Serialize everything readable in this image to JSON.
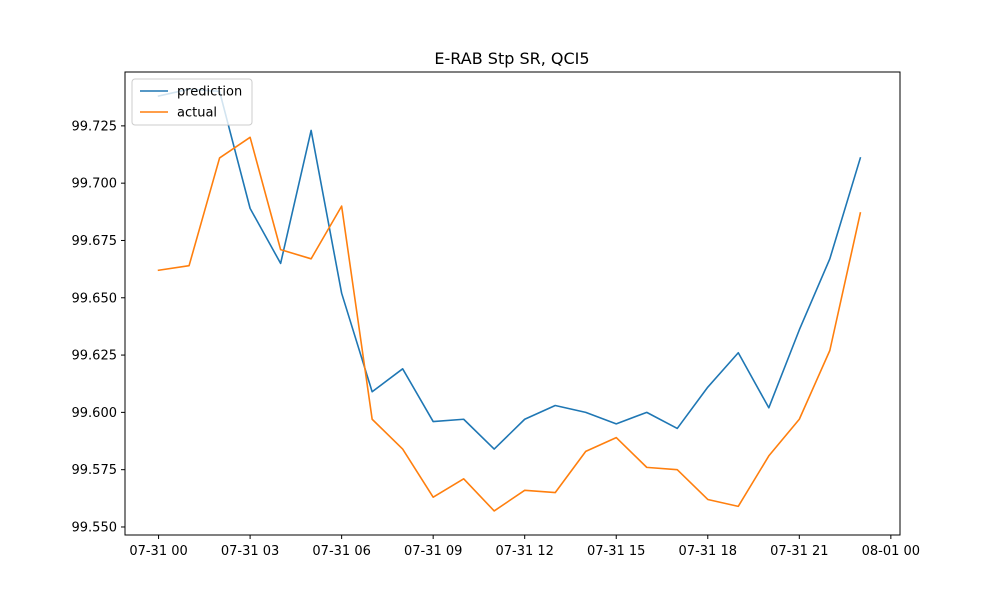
{
  "chart_data": {
    "type": "line",
    "title": "E-RAB Stp SR, QCI5",
    "xlabel": "",
    "ylabel": "",
    "x": [
      "07-31 00:00",
      "07-31 01:00",
      "07-31 02:00",
      "07-31 03:00",
      "07-31 04:00",
      "07-31 05:00",
      "07-31 06:00",
      "07-31 07:00",
      "07-31 08:00",
      "07-31 09:00",
      "07-31 10:00",
      "07-31 11:00",
      "07-31 12:00",
      "07-31 13:00",
      "07-31 14:00",
      "07-31 15:00",
      "07-31 16:00",
      "07-31 17:00",
      "07-31 18:00",
      "07-31 19:00",
      "07-31 20:00",
      "07-31 21:00",
      "07-31 22:00",
      "07-31 23:00"
    ],
    "x_ticks": [
      "07-31 00",
      "07-31 03",
      "07-31 06",
      "07-31 09",
      "07-31 12",
      "07-31 15",
      "07-31 18",
      "07-31 21",
      "08-01 00"
    ],
    "x_range_hours": [
      -1.1,
      24.3
    ],
    "ylim": [
      99.5465,
      99.7485
    ],
    "y_ticks": [
      "99.550",
      "99.575",
      "99.600",
      "99.625",
      "99.650",
      "99.675",
      "99.700",
      "99.725"
    ],
    "series": [
      {
        "name": "prediction",
        "color": "#1f77b4",
        "values": [
          99.738,
          99.741,
          99.74,
          99.689,
          99.665,
          99.723,
          99.652,
          99.609,
          99.619,
          99.596,
          99.597,
          99.584,
          99.597,
          99.603,
          99.6,
          99.595,
          99.6,
          99.593,
          99.611,
          99.626,
          99.602,
          99.636,
          99.667,
          99.711
        ]
      },
      {
        "name": "actual",
        "color": "#ff7f0e",
        "values": [
          99.662,
          99.664,
          99.711,
          99.72,
          99.671,
          99.667,
          99.69,
          99.597,
          99.584,
          99.563,
          99.571,
          99.557,
          99.566,
          99.565,
          99.583,
          99.589,
          99.576,
          99.575,
          99.562,
          99.559,
          99.581,
          99.597,
          99.627,
          99.687
        ]
      }
    ],
    "legend_position": "top-left",
    "grid": false
  }
}
